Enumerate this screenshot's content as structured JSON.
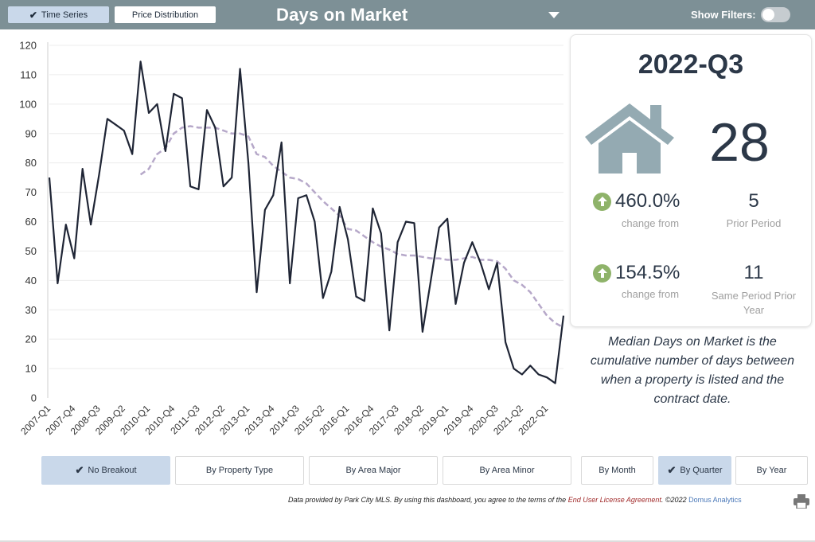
{
  "tabs": [
    {
      "label": "Time Series",
      "active": true
    },
    {
      "label": "Price Distribution",
      "active": false
    }
  ],
  "header": {
    "title": "Days on Market",
    "show_filters_label": "Show Filters:",
    "show_filters_on": false
  },
  "card": {
    "period": "2022-Q3",
    "value": "28",
    "stat1": {
      "pct": "460.0%",
      "pct_label": "change from",
      "value": "5",
      "value_label": "Prior Period"
    },
    "stat2": {
      "pct": "154.5%",
      "pct_label": "change from",
      "value": "11",
      "value_label": "Same Period Prior Year"
    }
  },
  "description": "Median Days on Market is the cumulative number of days between when a property is listed and the contract date.",
  "breakout_buttons": [
    {
      "label": "No Breakout",
      "selected": true
    },
    {
      "label": "By Property Type",
      "selected": false
    },
    {
      "label": "By Area Major",
      "selected": false
    },
    {
      "label": "By Area Minor",
      "selected": false
    }
  ],
  "period_buttons": [
    {
      "label": "By Month",
      "selected": false
    },
    {
      "label": "By Quarter",
      "selected": true
    },
    {
      "label": "By Year",
      "selected": false
    }
  ],
  "footer": {
    "text_before": "Data provided by Park City MLS.  By using this dashboard, you agree to the terms of the ",
    "eula": "End User License Agreement",
    "text_after": ".  ©2022 ",
    "brand": "Domus Analytics"
  },
  "colors": {
    "header_bg": "#7d9096",
    "selected_bg": "#c9d8ea",
    "line": "#1f2535",
    "trend": "#b6a8c9",
    "up_arrow": "#8fb36a",
    "house": "#94aab2"
  },
  "icons": [
    "check-icon",
    "chevron-down-icon",
    "house-icon",
    "arrow-up-icon",
    "print-icon"
  ],
  "chart_data": {
    "type": "line",
    "ylim": [
      0,
      120
    ],
    "yticks": [
      0,
      10,
      20,
      30,
      40,
      50,
      60,
      70,
      80,
      90,
      100,
      110,
      120
    ],
    "xtick_labels": [
      "2007-Q1",
      "2007-Q4",
      "2008-Q3",
      "2009-Q2",
      "2010-Q1",
      "2010-Q4",
      "2011-Q3",
      "2012-Q2",
      "2013-Q1",
      "2013-Q4",
      "2014-Q3",
      "2015-Q2",
      "2016-Q1",
      "2016-Q4",
      "2017-Q3",
      "2018-Q2",
      "2019-Q1",
      "2019-Q4",
      "2020-Q3",
      "2021-Q2",
      "2022-Q1"
    ],
    "grid": true,
    "series": [
      {
        "values": [
          75,
          39,
          59,
          47.5,
          78,
          59,
          76,
          95,
          93,
          91,
          83,
          114.5,
          97,
          100,
          84,
          103.5,
          102,
          72,
          71,
          98,
          92,
          72,
          75,
          112,
          80,
          36,
          64,
          69,
          87,
          39,
          68,
          69,
          60,
          34,
          43,
          65,
          54,
          34.5,
          33,
          64.5,
          56,
          23,
          53,
          60,
          59.5,
          22.5,
          40,
          58,
          61,
          32,
          46,
          53,
          46,
          37,
          46,
          19,
          10,
          8,
          11,
          8,
          7,
          5,
          28
        ]
      },
      {
        "start_index": 11,
        "values": [
          76,
          78,
          83,
          85,
          90,
          92,
          92.5,
          92,
          92,
          92,
          91,
          90,
          90,
          89,
          83,
          82,
          79,
          77,
          75,
          74.5,
          73,
          70,
          67,
          64.5,
          62,
          57.5,
          57,
          55,
          53,
          51.5,
          50.5,
          49,
          48.5,
          48.5,
          48,
          47.5,
          47.5,
          47,
          47,
          47.5,
          48,
          47,
          47,
          46.5,
          44,
          40,
          38.5,
          36,
          32,
          28,
          25.5,
          24
        ]
      }
    ]
  }
}
